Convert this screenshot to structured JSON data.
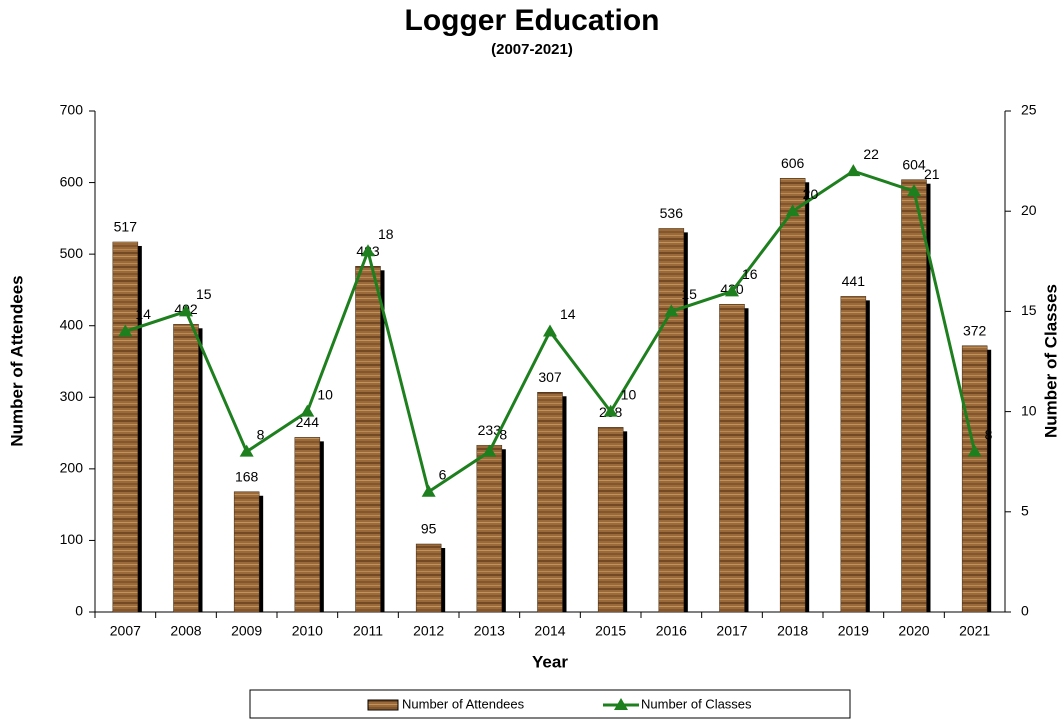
{
  "chart_data": {
    "type": "bar",
    "title": "Logger Education",
    "subtitle": "(2007-2021)",
    "x_label": "Year",
    "y_label": "Number of Attendees",
    "y2_label": "Number of Classes",
    "categories": [
      "2007",
      "2008",
      "2009",
      "2010",
      "2011",
      "2012",
      "2013",
      "2014",
      "2015",
      "2016",
      "2017",
      "2018",
      "2019",
      "2020",
      "2021"
    ],
    "series": [
      {
        "name": "Number of Attendees",
        "type": "bar",
        "color": "#9a6a3a",
        "values": [
          517,
          402,
          168,
          244,
          483,
          95,
          233,
          307,
          258,
          536,
          430,
          606,
          441,
          604,
          372
        ]
      },
      {
        "name": "Number of Classes",
        "type": "line",
        "axis": "y2",
        "color": "#1e7f1e",
        "values": [
          14,
          15,
          8,
          10,
          18,
          6,
          8,
          14,
          10,
          15,
          16,
          20,
          22,
          21,
          8
        ]
      }
    ],
    "ylim": [
      0,
      700
    ],
    "yticks": [
      0,
      100,
      200,
      300,
      400,
      500,
      600,
      700
    ],
    "y2lim": [
      0,
      25
    ],
    "y2ticks": [
      0,
      5,
      10,
      15,
      20,
      25
    ],
    "legend": "bottom"
  }
}
